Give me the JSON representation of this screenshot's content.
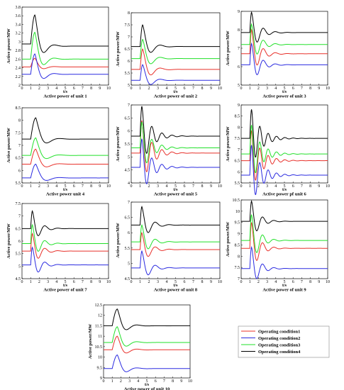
{
  "legend": {
    "entries": [
      {
        "label": "Operating condition1",
        "color": "#e8302a"
      },
      {
        "label": "Operating condition2",
        "color": "#2b2be0"
      },
      {
        "label": "Operating condition3",
        "color": "#22e02a"
      },
      {
        "label": "Operating condition4",
        "color": "#000000"
      }
    ]
  },
  "chart_data": [
    {
      "type": "line",
      "title": "Active power of unit 1",
      "xlabel": "t/s",
      "ylabel": "Active power/MW",
      "xlim": [
        0,
        10
      ],
      "ylim": [
        2,
        3.8
      ],
      "xticks": [
        "0",
        "1",
        "2",
        "3",
        "4",
        "5",
        "6",
        "7",
        "8",
        "9",
        "10"
      ],
      "yticks": [
        "2",
        "2.2",
        "2.4",
        "2.6",
        "2.8",
        "3",
        "3.2",
        "3.4",
        "3.6",
        "3.8"
      ],
      "series": [
        {
          "condition": 1,
          "color": "#e8302a",
          "base": 2.42,
          "peak": 2.62,
          "peak_t": 1.5,
          "final": 2.42
        },
        {
          "condition": 2,
          "color": "#2b2be0",
          "base": 2.25,
          "peak": 2.72,
          "peak_t": 1.5,
          "final": 2.25
        },
        {
          "condition": 3,
          "color": "#22e02a",
          "base": 2.6,
          "peak": 3.22,
          "peak_t": 1.5,
          "final": 2.6
        },
        {
          "condition": 4,
          "color": "#000000",
          "base": 2.95,
          "peak": 3.62,
          "peak_t": 1.5,
          "final": 2.9
        }
      ]
    },
    {
      "type": "line",
      "title": "Active power of unit 2",
      "xlabel": "t/s",
      "ylabel": "Active power/MW",
      "xlim": [
        0,
        10
      ],
      "ylim": [
        5,
        8
      ],
      "xticks": [
        "0",
        "1",
        "2",
        "3",
        "4",
        "5",
        "6",
        "7",
        "8",
        "9",
        "10"
      ],
      "yticks": [
        "5",
        "5.5",
        "6",
        "6.5",
        "7",
        "7.5",
        "8"
      ],
      "series": [
        {
          "condition": 1,
          "color": "#e8302a",
          "base": 5.65,
          "peak": 6.5,
          "peak_t": 1.3,
          "final": 5.65
        },
        {
          "condition": 2,
          "color": "#2b2be0",
          "base": 5.2,
          "peak": 5.85,
          "peak_t": 1.3,
          "final": 5.2
        },
        {
          "condition": 3,
          "color": "#22e02a",
          "base": 6.1,
          "peak": 6.9,
          "peak_t": 1.3,
          "final": 6.1
        },
        {
          "condition": 4,
          "color": "#000000",
          "base": 6.6,
          "peak": 7.5,
          "peak_t": 1.3,
          "final": 6.6
        }
      ]
    },
    {
      "type": "line",
      "title": "Active power of unit 3",
      "xlabel": "t/s",
      "ylabel": "Active power/MW",
      "xlim": [
        0,
        10
      ],
      "ylim": [
        5,
        9
      ],
      "xticks": [
        "0",
        "1",
        "2",
        "3",
        "4",
        "5",
        "6",
        "7",
        "8",
        "9",
        "10"
      ],
      "yticks": [
        "5",
        "6",
        "7",
        "8",
        "9"
      ],
      "series": [
        {
          "condition": 1,
          "color": "#e8302a",
          "base": 6.7,
          "peak": 8.0,
          "peak_t": 1.2,
          "final": 6.7
        },
        {
          "condition": 2,
          "color": "#2b2be0",
          "base": 6.1,
          "peak": 7.25,
          "peak_t": 1.2,
          "final": 6.1
        },
        {
          "condition": 3,
          "color": "#22e02a",
          "base": 7.2,
          "peak": 8.3,
          "peak_t": 1.2,
          "final": 7.2
        },
        {
          "condition": 4,
          "color": "#000000",
          "base": 7.85,
          "peak": 8.95,
          "peak_t": 1.2,
          "final": 7.85
        }
      ]
    },
    {
      "type": "line",
      "title": "Active power unit 4",
      "xlabel": "t/s",
      "ylabel": "Active power/MW",
      "xlim": [
        0,
        10
      ],
      "ylim": [
        5.5,
        8.5
      ],
      "xticks": [
        "0",
        "1",
        "2",
        "3",
        "4",
        "5",
        "6",
        "7",
        "8",
        "9",
        "10"
      ],
      "yticks": [
        "5.5",
        "6",
        "6.5",
        "7",
        "7.5",
        "8",
        "8.5"
      ],
      "series": [
        {
          "condition": 1,
          "color": "#e8302a",
          "base": 6.25,
          "peak": 6.85,
          "peak_t": 1.6,
          "final": 6.25
        },
        {
          "condition": 2,
          "color": "#2b2be0",
          "base": 5.7,
          "peak": 6.25,
          "peak_t": 1.6,
          "final": 5.7
        },
        {
          "condition": 3,
          "color": "#22e02a",
          "base": 6.6,
          "peak": 7.3,
          "peak_t": 1.6,
          "final": 6.6
        },
        {
          "condition": 4,
          "color": "#000000",
          "base": 7.25,
          "peak": 8.1,
          "peak_t": 1.6,
          "final": 7.25
        }
      ]
    },
    {
      "type": "line",
      "title": "Active power of unit 5",
      "xlabel": "t/s",
      "ylabel": "Active power/MW",
      "xlim": [
        0,
        10
      ],
      "ylim": [
        4,
        7
      ],
      "xticks": [
        "0",
        "1",
        "2",
        "3",
        "4",
        "5",
        "6",
        "7",
        "8",
        "9",
        "10"
      ],
      "yticks": [
        "4",
        "4.5",
        "5",
        "5.5",
        "6",
        "6.5",
        "7"
      ],
      "series": [
        {
          "condition": 1,
          "color": "#e8302a",
          "base": 5.15,
          "peak": 6.4,
          "peak_t": 1.0,
          "final": 5.15
        },
        {
          "condition": 2,
          "color": "#2b2be0",
          "base": 4.6,
          "peak": 5.7,
          "peak_t": 1.0,
          "final": 4.6
        },
        {
          "condition": 3,
          "color": "#22e02a",
          "base": 5.35,
          "peak": 6.35,
          "peak_t": 1.0,
          "final": 5.35
        },
        {
          "condition": 4,
          "color": "#000000",
          "base": 5.8,
          "peak": 6.95,
          "peak_t": 1.0,
          "final": 5.8
        }
      ]
    },
    {
      "type": "line",
      "title": "Active power pf unit 6",
      "xlabel": "t/s",
      "ylabel": "Active power/MW",
      "xlim": [
        0,
        10
      ],
      "ylim": [
        5.5,
        9
      ],
      "xticks": [
        "0",
        "1",
        "2",
        "3",
        "4",
        "5",
        "6",
        "7",
        "8",
        "9",
        "10"
      ],
      "yticks": [
        "5.5",
        "6",
        "6.5",
        "7",
        "7.5",
        "8",
        "8.5",
        "9"
      ],
      "series": [
        {
          "condition": 1,
          "color": "#e8302a",
          "base": 6.5,
          "peak": 7.85,
          "peak_t": 1.0,
          "final": 6.5
        },
        {
          "condition": 2,
          "color": "#2b2be0",
          "base": 5.85,
          "peak": 7.2,
          "peak_t": 1.0,
          "final": 5.85
        },
        {
          "condition": 3,
          "color": "#22e02a",
          "base": 6.8,
          "peak": 8.1,
          "peak_t": 1.0,
          "final": 6.8
        },
        {
          "condition": 4,
          "color": "#000000",
          "base": 7.5,
          "peak": 8.8,
          "peak_t": 1.0,
          "final": 7.5
        }
      ]
    },
    {
      "type": "line",
      "title": "Active power of unit 7",
      "xlabel": "t/s",
      "ylabel": "Active power/MW",
      "xlim": [
        0,
        10
      ],
      "ylim": [
        4.5,
        7.5
      ],
      "xticks": [
        "0",
        "1",
        "2",
        "3",
        "4",
        "5",
        "6",
        "7",
        "8",
        "9",
        "10"
      ],
      "yticks": [
        "4.5",
        "5",
        "5.5",
        "6",
        "6.5",
        "7",
        "7.5"
      ],
      "series": [
        {
          "condition": 1,
          "color": "#e8302a",
          "base": 5.6,
          "peak": 6.3,
          "peak_t": 1.2,
          "final": 5.6
        },
        {
          "condition": 2,
          "color": "#2b2be0",
          "base": 5.05,
          "peak": 5.75,
          "peak_t": 1.2,
          "final": 5.05
        },
        {
          "condition": 3,
          "color": "#22e02a",
          "base": 5.9,
          "peak": 6.65,
          "peak_t": 1.2,
          "final": 5.9
        },
        {
          "condition": 4,
          "color": "#000000",
          "base": 6.5,
          "peak": 7.2,
          "peak_t": 1.2,
          "final": 6.5
        }
      ]
    },
    {
      "type": "line",
      "title": "Active power of unit 8",
      "xlabel": "t/s",
      "ylabel": "Active power/MW",
      "xlim": [
        0,
        10
      ],
      "ylim": [
        4.5,
        7
      ],
      "xticks": [
        "0",
        "1",
        "2",
        "3",
        "4",
        "5",
        "6",
        "7",
        "8",
        "9",
        "10"
      ],
      "yticks": [
        "4.5",
        "5",
        "5.5",
        "6",
        "6.5",
        "7"
      ],
      "series": [
        {
          "condition": 1,
          "color": "#e8302a",
          "base": 5.45,
          "peak": 6.0,
          "peak_t": 1.2,
          "final": 5.45
        },
        {
          "condition": 2,
          "color": "#2b2be0",
          "base": 4.85,
          "peak": 5.4,
          "peak_t": 1.2,
          "final": 4.85
        },
        {
          "condition": 3,
          "color": "#22e02a",
          "base": 5.7,
          "peak": 6.25,
          "peak_t": 1.2,
          "final": 5.7
        },
        {
          "condition": 4,
          "color": "#000000",
          "base": 6.25,
          "peak": 6.85,
          "peak_t": 1.2,
          "final": 6.25
        }
      ]
    },
    {
      "type": "line",
      "title": "Active power of unit 9",
      "xlabel": "t/s",
      "ylabel": "Active power/MW",
      "xlim": [
        0,
        10
      ],
      "ylim": [
        7,
        10.5
      ],
      "xticks": [
        "0",
        "1",
        "2",
        "3",
        "4",
        "5",
        "6",
        "7",
        "8",
        "9",
        "10"
      ],
      "yticks": [
        "7",
        "7.5",
        "8",
        "8.5",
        "9",
        "9.5",
        "10",
        "10.5"
      ],
      "series": [
        {
          "condition": 1,
          "color": "#e8302a",
          "base": 8.35,
          "peak": 9.5,
          "peak_t": 1.1,
          "final": 8.35
        },
        {
          "condition": 2,
          "color": "#2b2be0",
          "base": 7.45,
          "peak": 8.4,
          "peak_t": 1.1,
          "final": 7.45
        },
        {
          "condition": 3,
          "color": "#22e02a",
          "base": 8.7,
          "peak": 9.85,
          "peak_t": 1.1,
          "final": 8.7
        },
        {
          "condition": 4,
          "color": "#000000",
          "base": 9.55,
          "peak": 10.45,
          "peak_t": 1.1,
          "final": 9.55
        }
      ]
    },
    {
      "type": "line",
      "title": "Active power of unit 10",
      "xlabel": "t/s",
      "ylabel": "Active power/MW",
      "xlim": [
        0,
        10
      ],
      "ylim": [
        9,
        12.5
      ],
      "xticks": [
        "0",
        "1",
        "2",
        "3",
        "4",
        "5",
        "6",
        "7",
        "8",
        "9",
        "10"
      ],
      "yticks": [
        "9",
        "9.5",
        "10",
        "10.5",
        "11",
        "11.5",
        "12",
        "12.5"
      ],
      "series": [
        {
          "condition": 1,
          "color": "#e8302a",
          "base": 10.35,
          "peak": 11.0,
          "peak_t": 1.6,
          "final": 10.35
        },
        {
          "condition": 2,
          "color": "#2b2be0",
          "base": 9.45,
          "peak": 10.1,
          "peak_t": 1.6,
          "final": 9.45
        },
        {
          "condition": 3,
          "color": "#22e02a",
          "base": 10.7,
          "peak": 11.45,
          "peak_t": 1.6,
          "final": 10.7
        },
        {
          "condition": 4,
          "color": "#000000",
          "base": 11.5,
          "peak": 12.3,
          "peak_t": 1.6,
          "final": 11.5
        }
      ]
    }
  ]
}
